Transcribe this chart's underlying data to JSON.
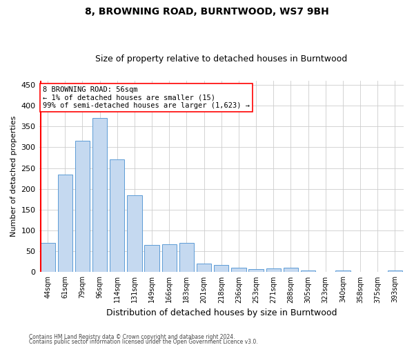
{
  "title1": "8, BROWNING ROAD, BURNTWOOD, WS7 9BH",
  "title2": "Size of property relative to detached houses in Burntwood",
  "xlabel": "Distribution of detached houses by size in Burntwood",
  "ylabel": "Number of detached properties",
  "bar_labels": [
    "44sqm",
    "61sqm",
    "79sqm",
    "96sqm",
    "114sqm",
    "131sqm",
    "149sqm",
    "166sqm",
    "183sqm",
    "201sqm",
    "218sqm",
    "236sqm",
    "253sqm",
    "271sqm",
    "288sqm",
    "305sqm",
    "323sqm",
    "340sqm",
    "358sqm",
    "375sqm",
    "393sqm"
  ],
  "bar_values": [
    70,
    235,
    315,
    370,
    270,
    185,
    65,
    67,
    70,
    20,
    18,
    10,
    8,
    9,
    10,
    4,
    0,
    4,
    0,
    0,
    4
  ],
  "bar_color": "#c5d9f0",
  "bar_edgecolor": "#5b9bd5",
  "ylim": [
    0,
    460
  ],
  "yticks": [
    0,
    50,
    100,
    150,
    200,
    250,
    300,
    350,
    400,
    450
  ],
  "annotation_title": "8 BROWNING ROAD: 56sqm",
  "annotation_line1": "← 1% of detached houses are smaller (15)",
  "annotation_line2": "99% of semi-detached houses are larger (1,623) →",
  "footer1": "Contains HM Land Registry data © Crown copyright and database right 2024.",
  "footer2": "Contains public sector information licensed under the Open Government Licence v3.0.",
  "background_color": "#ffffff",
  "grid_color": "#cccccc",
  "title1_fontsize": 10,
  "title2_fontsize": 9,
  "ylabel_fontsize": 8,
  "xlabel_fontsize": 9
}
